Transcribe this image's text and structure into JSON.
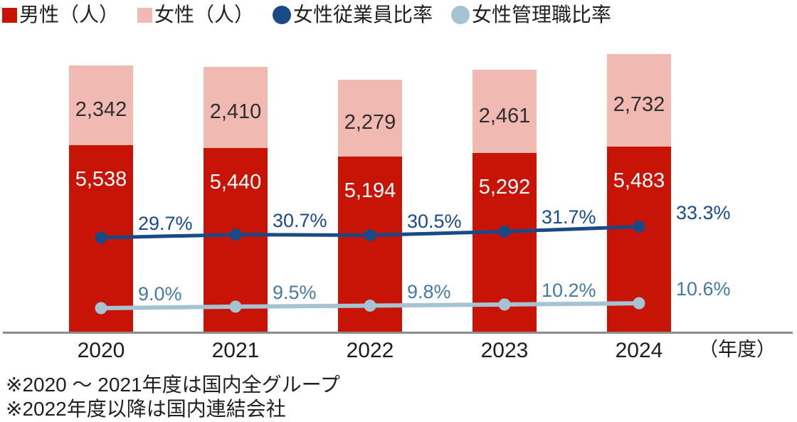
{
  "chart_data": {
    "type": "bar",
    "subtype": "stacked-bars-with-line-overlays",
    "title": "",
    "categories": [
      "2020",
      "2021",
      "2022",
      "2023",
      "2024"
    ],
    "stacked": true,
    "grid": false,
    "y_axis": "hidden",
    "legend_position": "top",
    "xlabel_unit": "（年度）",
    "bar_series": [
      {
        "name": "男性（人）",
        "values": [
          5538,
          5440,
          5194,
          5292,
          5483
        ],
        "color": "#c81407",
        "label_color": "#ffffff",
        "swatch": "square"
      },
      {
        "name": "女性（人）",
        "values": [
          2342,
          2410,
          2279,
          2461,
          2732
        ],
        "color": "#f0bab2",
        "label_color": "#2e2e2e",
        "swatch": "square"
      }
    ],
    "line_series": [
      {
        "name": "女性従業員比率",
        "values": [
          29.7,
          30.7,
          30.5,
          31.7,
          33.3
        ],
        "unit": "%",
        "color": "#1a4a85",
        "label_color": "#1b4a8a",
        "swatch": "circle"
      },
      {
        "name": "女性管理職比率",
        "values": [
          9.0,
          9.5,
          9.8,
          10.2,
          10.6
        ],
        "unit": "%",
        "color": "#a5c3d2",
        "label_color": "#4579a6",
        "swatch": "circle"
      }
    ]
  },
  "footnotes": [
    "※2020 ～ 2021年度は国内全グループ",
    "※2022年度以降は国内連結会社"
  ],
  "colors": {
    "axis": "#8c8c8c",
    "background": "#ffffff",
    "text": "#1f1f1f"
  }
}
